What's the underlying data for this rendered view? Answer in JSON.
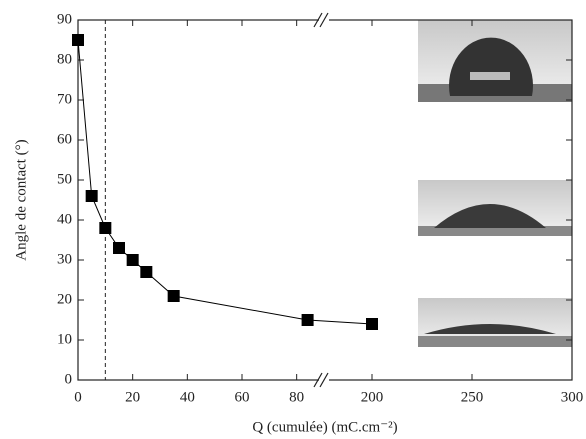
{
  "chart_data": {
    "type": "line",
    "x_label": "Q (cumulée) (mC.cm⁻²)",
    "y_label": "Angle de contact (°)",
    "x": [
      0,
      5,
      10,
      15,
      20,
      25,
      35,
      84,
      200
    ],
    "series": [
      {
        "color": "#000000",
        "values": [
          85,
          46,
          38,
          33,
          30,
          27,
          21,
          15,
          14
        ]
      }
    ],
    "xlim_segments": [
      [
        0,
        90
      ],
      [
        176,
        300
      ]
    ],
    "xticks": [
      0,
      20,
      40,
      60,
      80,
      200,
      250,
      300
    ],
    "ylim": [
      0,
      90
    ],
    "yticks": [
      0,
      10,
      20,
      30,
      40,
      50,
      60,
      70,
      80,
      90
    ],
    "vline": 10
  }
}
